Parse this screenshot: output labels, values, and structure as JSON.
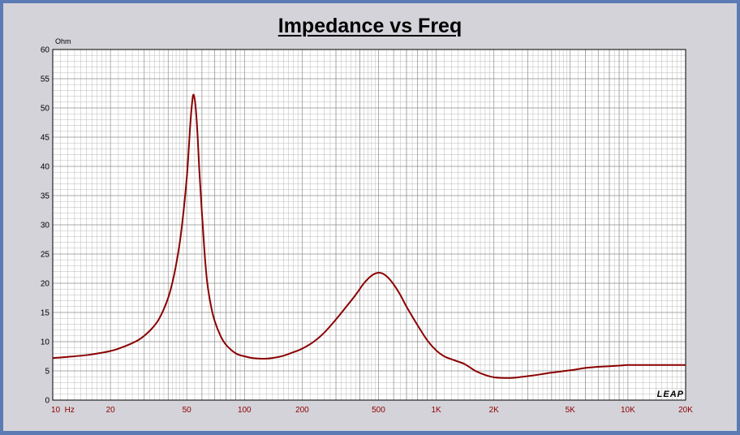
{
  "chart_data": {
    "type": "line",
    "title": "Impedance vs Freq",
    "ylabel": "Ohm",
    "xlabel": "",
    "x_scale": "log",
    "xlim": [
      10,
      20000
    ],
    "ylim": [
      0,
      60
    ],
    "grid": true,
    "watermark": "LEAP",
    "y_ticks": [
      0,
      5,
      10,
      15,
      20,
      25,
      30,
      35,
      40,
      45,
      50,
      55,
      60
    ],
    "x_ticks": [
      {
        "value": 10,
        "label": "10  Hz"
      },
      {
        "value": 20,
        "label": "20"
      },
      {
        "value": 50,
        "label": "50"
      },
      {
        "value": 100,
        "label": "100"
      },
      {
        "value": 200,
        "label": "200"
      },
      {
        "value": 500,
        "label": "500"
      },
      {
        "value": 1000,
        "label": "1K"
      },
      {
        "value": 2000,
        "label": "2K"
      },
      {
        "value": 5000,
        "label": "5K"
      },
      {
        "value": 10000,
        "label": "10K"
      },
      {
        "value": 20000,
        "label": "20K"
      }
    ],
    "series": [
      {
        "color": "#8b0000",
        "x": [
          10,
          12,
          15,
          18,
          20,
          22,
          25,
          28,
          30,
          33,
          36,
          40,
          43,
          46,
          48,
          50,
          51,
          52,
          53,
          54,
          55,
          56,
          57,
          58,
          60,
          62,
          64,
          67,
          70,
          75,
          80,
          90,
          100,
          110,
          120,
          130,
          140,
          160,
          180,
          200,
          230,
          260,
          300,
          340,
          380,
          420,
          460,
          500,
          530,
          560,
          600,
          650,
          700,
          800,
          900,
          1000,
          1100,
          1200,
          1300,
          1400,
          1500,
          1600,
          1800,
          2000,
          2200,
          2500,
          3000,
          3500,
          4000,
          5000,
          6000,
          7000,
          8000,
          9000,
          10000,
          12000,
          15000,
          20000
        ],
        "y": [
          7.2,
          7.4,
          7.7,
          8.1,
          8.4,
          8.8,
          9.5,
          10.3,
          11.0,
          12.3,
          14.0,
          17.5,
          21.5,
          27.0,
          32.0,
          38.0,
          42.0,
          46.5,
          50.0,
          52.2,
          51.5,
          49.0,
          45.0,
          40.0,
          32.0,
          25.0,
          20.0,
          16.0,
          13.5,
          11.0,
          9.5,
          8.0,
          7.5,
          7.2,
          7.1,
          7.1,
          7.2,
          7.6,
          8.2,
          8.8,
          10.0,
          11.5,
          13.8,
          16.0,
          18.0,
          20.0,
          21.3,
          21.8,
          21.6,
          21.0,
          19.8,
          18.0,
          16.0,
          12.8,
          10.2,
          8.5,
          7.5,
          7.0,
          6.6,
          6.2,
          5.6,
          5.0,
          4.3,
          3.9,
          3.8,
          3.8,
          4.1,
          4.4,
          4.7,
          5.1,
          5.5,
          5.7,
          5.8,
          5.9,
          6.0,
          6.0,
          6.0,
          6.0
        ]
      }
    ]
  }
}
